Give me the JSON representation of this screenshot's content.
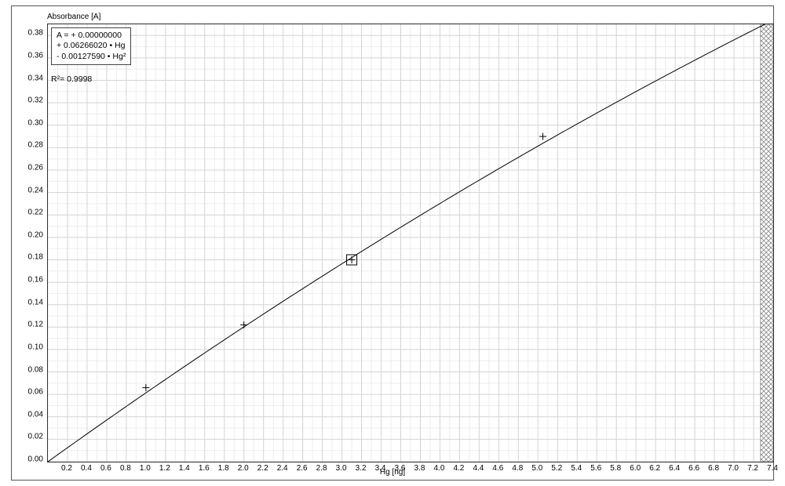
{
  "chart": {
    "type": "scatter-with-curve",
    "y_axis_title": "Absorbance [A]",
    "x_axis_title": "Hg [ng]",
    "xlim": [
      0.0,
      7.4
    ],
    "ylim": [
      0.0,
      0.39
    ],
    "x_tick_start": 0.2,
    "x_tick_step": 0.2,
    "x_tick_end": 7.4,
    "y_tick_start": 0.0,
    "y_tick_step": 0.02,
    "y_tick_end": 0.38,
    "x_minor_subdiv": 2,
    "y_minor_subdiv": 2,
    "grid_major_color": "#d4d4d4",
    "grid_minor_color": "#ededed",
    "axis_color": "#333333",
    "background_color": "#ffffff",
    "curve_color": "#000000",
    "curve_width": 1,
    "marker_color": "#000000",
    "marker_size_plus": 9,
    "points": [
      {
        "x": 1.0,
        "y": 0.066,
        "marker": "plus"
      },
      {
        "x": 2.0,
        "y": 0.122,
        "marker": "plus"
      },
      {
        "x": 3.1,
        "y": 0.18,
        "marker": "plus-box"
      },
      {
        "x": 5.05,
        "y": 0.29,
        "marker": "plus"
      }
    ],
    "curve": {
      "coef_const": 0.0,
      "coef_lin": 0.0626602,
      "coef_quad": -0.0012759
    },
    "equation_lines": [
      "A =  + 0.00000000",
      "       + 0.06266020 • Hg",
      "       -  0.00127590 • Hg²"
    ],
    "r_squared": "R²= 0.9998",
    "hatch_region": {
      "x_start": 7.27,
      "x_end": 7.4,
      "pattern_color": "#888888",
      "pattern_bg": "#ffffff"
    },
    "label_fontsize": 10,
    "eq_fontsize": 10.5
  }
}
